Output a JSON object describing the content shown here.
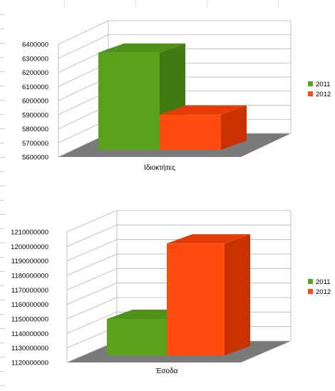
{
  "chart_data": [
    {
      "type": "bar",
      "categories": [
        "Ιδιοκτήτες"
      ],
      "series": [
        {
          "name": "2011",
          "values": [
            6340000
          ]
        },
        {
          "name": "2012",
          "values": [
            5900000
          ]
        }
      ],
      "ylim": [
        5600000,
        6400000
      ],
      "yticks": [
        5600000,
        5700000,
        5800000,
        5900000,
        6000000,
        6100000,
        6200000,
        6300000,
        6400000
      ],
      "ytick_labels": [
        "5600000",
        "5700000",
        "5800000",
        "5900000",
        "6000000",
        "6100000",
        "6200000",
        "6300000",
        "6400000"
      ],
      "xlabel": "Ιδιοκτήτες",
      "legend_position": "right",
      "grid": true,
      "three_d": true
    },
    {
      "type": "bar",
      "categories": [
        "Έσοδα"
      ],
      "series": [
        {
          "name": "2011",
          "values": [
            1150000000
          ]
        },
        {
          "name": "2012",
          "values": [
            1202000000
          ]
        }
      ],
      "ylim": [
        1120000000,
        1210000000
      ],
      "yticks": [
        1120000000,
        1130000000,
        1140000000,
        1150000000,
        1160000000,
        1170000000,
        1180000000,
        1190000000,
        1200000000,
        1210000000
      ],
      "ytick_labels": [
        "1120000000",
        "1130000000",
        "1140000000",
        "1150000000",
        "1160000000",
        "1170000000",
        "1180000000",
        "1190000000",
        "1200000000",
        "1210000000"
      ],
      "xlabel": "Έσοδα",
      "legend_position": "right",
      "grid": true,
      "three_d": true
    }
  ],
  "colors": {
    "series_2011": "#5aa21e",
    "series_2012": "#ff4b0d",
    "floor": "#7a7a7a",
    "grid": "#b3b3b3"
  }
}
